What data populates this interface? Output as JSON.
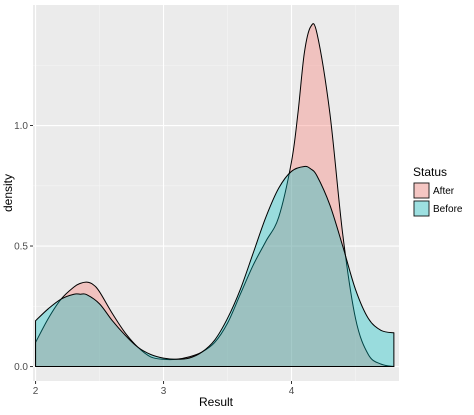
{
  "chart_data": {
    "type": "area",
    "title": "",
    "xlabel": "Result",
    "ylabel": "density",
    "xlim": [
      1.98,
      4.84
    ],
    "ylim": [
      -0.06,
      1.5
    ],
    "x_ticks": [
      2,
      3,
      4
    ],
    "x_minor_ticks": [
      2.5,
      3.5,
      4.5
    ],
    "y_ticks": [
      0.0,
      0.5,
      1.0
    ],
    "y_tick_labels": [
      "0.0",
      "0.5",
      "1.0"
    ],
    "y_minor_ticks": [
      0.25,
      0.75,
      1.25
    ],
    "grid": true,
    "legend": {
      "title": "Status",
      "placement": "right",
      "entries": [
        "After",
        "Before"
      ]
    },
    "series": [
      {
        "name": "After",
        "fill": "#F8766D",
        "fill_opacity": 0.35,
        "x": [
          2.0,
          2.1,
          2.2,
          2.3,
          2.35,
          2.4,
          2.45,
          2.5,
          2.6,
          2.7,
          2.8,
          2.9,
          3.0,
          3.1,
          3.2,
          3.3,
          3.4,
          3.5,
          3.6,
          3.7,
          3.8,
          3.9,
          4.0,
          4.05,
          4.1,
          4.15,
          4.2,
          4.3,
          4.4,
          4.5,
          4.6,
          4.7,
          4.8
        ],
        "y": [
          0.1,
          0.2,
          0.28,
          0.33,
          0.345,
          0.35,
          0.34,
          0.31,
          0.22,
          0.14,
          0.08,
          0.04,
          0.03,
          0.03,
          0.04,
          0.06,
          0.1,
          0.18,
          0.3,
          0.42,
          0.52,
          0.62,
          0.85,
          1.05,
          1.3,
          1.41,
          1.38,
          1.05,
          0.55,
          0.2,
          0.05,
          0.01,
          0.0
        ]
      },
      {
        "name": "Before",
        "fill": "#00BFC4",
        "fill_opacity": 0.35,
        "x": [
          2.0,
          2.1,
          2.2,
          2.3,
          2.35,
          2.4,
          2.5,
          2.6,
          2.7,
          2.8,
          2.9,
          3.0,
          3.1,
          3.2,
          3.3,
          3.4,
          3.5,
          3.6,
          3.7,
          3.8,
          3.9,
          4.0,
          4.1,
          4.15,
          4.2,
          4.3,
          4.4,
          4.5,
          4.6,
          4.7,
          4.8
        ],
        "y": [
          0.19,
          0.24,
          0.28,
          0.3,
          0.3,
          0.298,
          0.26,
          0.19,
          0.13,
          0.08,
          0.05,
          0.035,
          0.03,
          0.035,
          0.06,
          0.11,
          0.2,
          0.32,
          0.47,
          0.62,
          0.74,
          0.81,
          0.83,
          0.82,
          0.79,
          0.67,
          0.5,
          0.32,
          0.2,
          0.15,
          0.14
        ]
      }
    ]
  }
}
